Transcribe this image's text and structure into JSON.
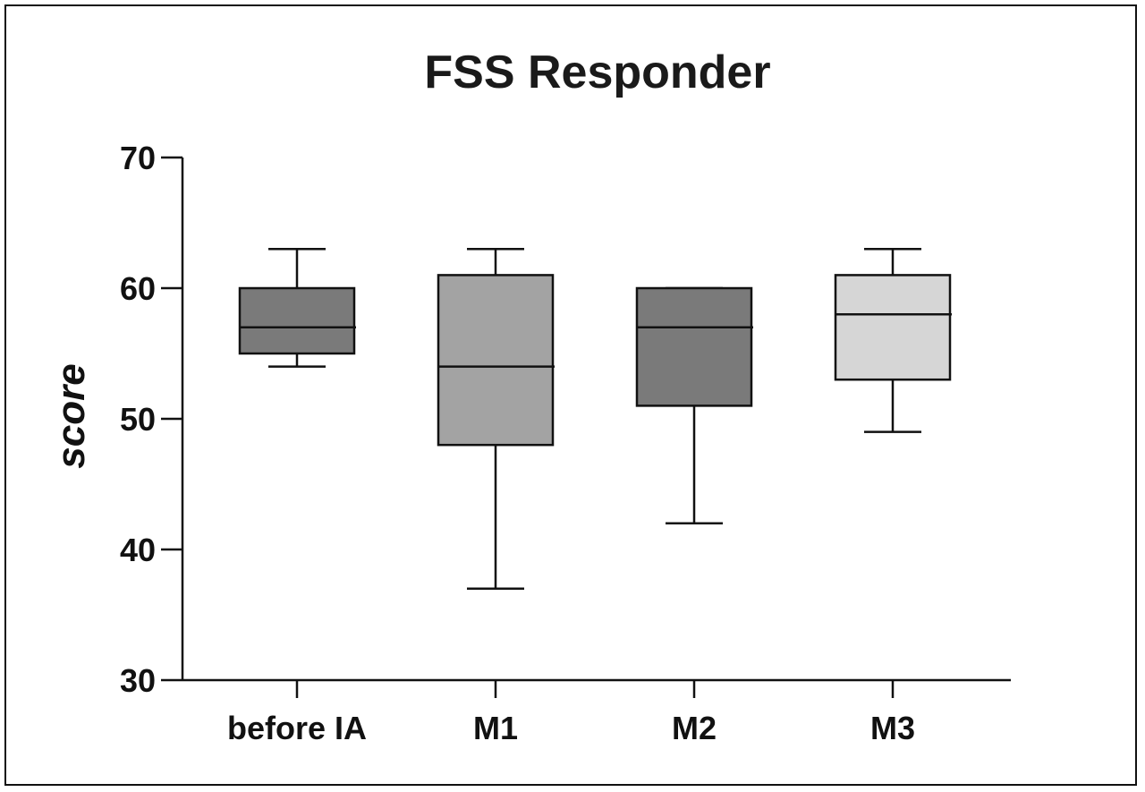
{
  "chart_data": {
    "type": "box",
    "title": "FSS Responder",
    "xlabel": "",
    "ylabel": "score",
    "ylim": [
      30,
      70
    ],
    "yticks": [
      30,
      40,
      50,
      60,
      70
    ],
    "categories": [
      "before IA",
      "M1",
      "M2",
      "M3"
    ],
    "boxes": [
      {
        "category": "before IA",
        "min": 54,
        "q1": 55,
        "median": 57,
        "q3": 60,
        "max": 63,
        "color": "#7a7a7a"
      },
      {
        "category": "M1",
        "min": 37,
        "q1": 48,
        "median": 54,
        "q3": 61,
        "max": 63,
        "color": "#a3a3a3"
      },
      {
        "category": "M2",
        "min": 42,
        "q1": 51,
        "median": 57,
        "q3": 60,
        "max": 60,
        "color": "#7a7a7a"
      },
      {
        "category": "M3",
        "min": 49,
        "q1": 53,
        "median": 58,
        "q3": 61,
        "max": 63,
        "color": "#d6d6d6"
      }
    ],
    "grid": false,
    "legend": "none"
  }
}
